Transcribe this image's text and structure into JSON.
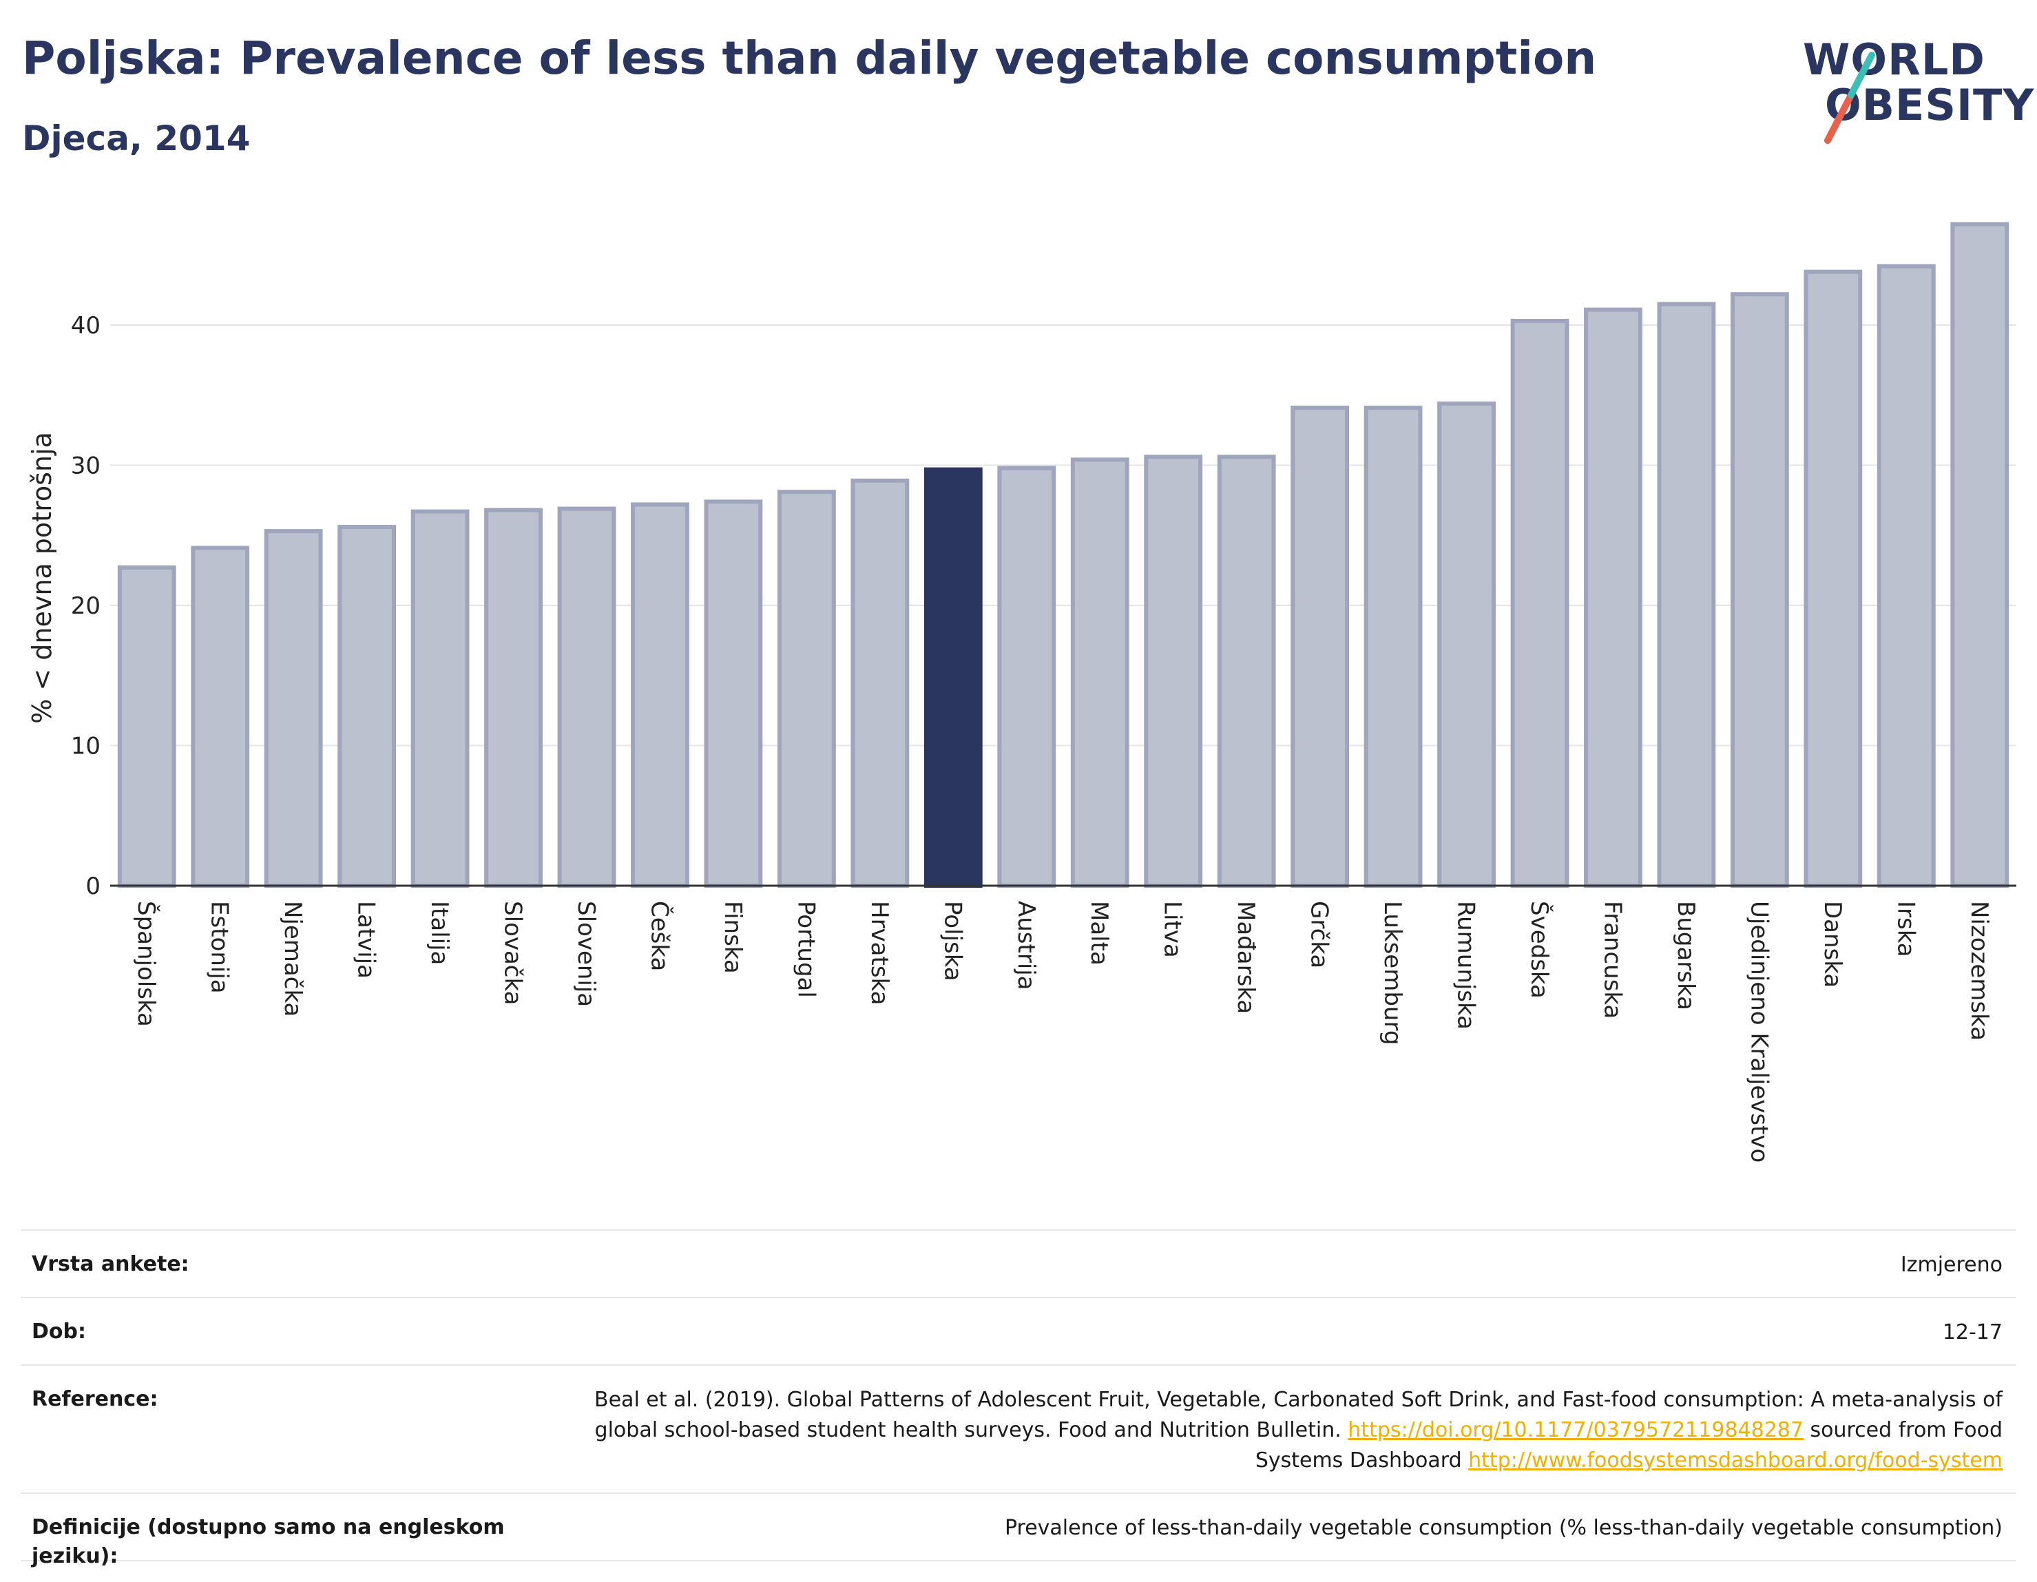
{
  "header": {
    "title": "Poljska: Prevalence of less than daily vegetable consumption",
    "subtitle": "Djeca, 2014",
    "logo_line1": "WORLD",
    "logo_line2": "OBESITY"
  },
  "colors": {
    "bar": "#bcc1cf",
    "bar_border": "#9ea5bd",
    "highlight": "#2a3560",
    "title": "#2a3560",
    "logo_slash_teal": "#3bbfb5",
    "logo_slash_red": "#e8614a",
    "link": "#f0b000"
  },
  "chart_data": {
    "type": "bar",
    "title": "Poljska: Prevalence of less than daily vegetable consumption",
    "subtitle": "Djeca, 2014",
    "xlabel": "",
    "ylabel": "% < dnevna potrošnja",
    "ylim": [
      0,
      48
    ],
    "yticks": [
      0,
      10,
      20,
      30,
      40
    ],
    "grid": true,
    "highlight": "Poljska",
    "categories": [
      "Španjolska",
      "Estonija",
      "Njemačka",
      "Latvija",
      "Italija",
      "Slovačka",
      "Slovenija",
      "Češka",
      "Finska",
      "Portugal",
      "Hrvatska",
      "Poljska",
      "Austrija",
      "Malta",
      "Litva",
      "Mađarska",
      "Grčka",
      "Luksemburg",
      "Rumunjska",
      "Švedska",
      "Francuska",
      "Bugarska",
      "Ujedinjeno Kraljevstvo",
      "Danska",
      "Irska",
      "Nizozemska"
    ],
    "values": [
      22.7,
      24.1,
      25.3,
      25.6,
      26.7,
      26.8,
      26.9,
      27.2,
      27.4,
      28.1,
      28.9,
      29.7,
      29.8,
      30.4,
      30.6,
      30.6,
      34.1,
      34.1,
      34.4,
      40.3,
      41.1,
      41.5,
      42.2,
      43.8,
      44.2,
      47.2
    ]
  },
  "info": {
    "survey_label": "Vrsta ankete:",
    "survey_value": "Izmjereno",
    "age_label": "Dob:",
    "age_value": "12-17",
    "reference_label": "Reference:",
    "reference_text_1": "Beal et al. (2019). Global Patterns of Adolescent Fruit, Vegetable, Carbonated Soft Drink, and Fast-food consumption: A meta-analysis of global school-based student health surveys. Food and Nutrition Bulletin. ",
    "reference_link_1": "https://doi.org/10.1177/0379572119848287",
    "reference_text_2": " sourced from Food Systems Dashboard ",
    "reference_link_2": "http://www.foodsystemsdashboard.org/food-system",
    "definition_label": "Definicije (dostupno samo na engleskom jeziku):",
    "definition_value": "Prevalence of less-than-daily vegetable consumption (% less-than-daily vegetable consumption)"
  }
}
